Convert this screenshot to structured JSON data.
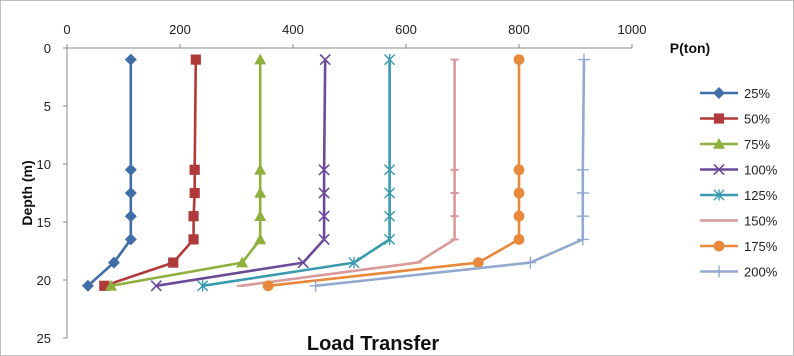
{
  "chart_data": {
    "type": "line",
    "title": "Load Transfer",
    "xlabel": "P(ton)",
    "ylabel": "Depth (m)",
    "xlim": [
      0,
      1000
    ],
    "ylim": [
      0,
      25
    ],
    "y_inverted": true,
    "x_axis_position": "top",
    "grid": false,
    "legend_position": "right",
    "x_ticks": [
      "0",
      "200",
      "400",
      "600",
      "800",
      "1000"
    ],
    "y_ticks": [
      "0",
      "5",
      "10",
      "15",
      "20",
      "25"
    ],
    "series": [
      {
        "name": "25%",
        "color": "#3F6EA8",
        "marker": "diamond",
        "points": [
          [
            113,
            1
          ],
          [
            113,
            10.5
          ],
          [
            113,
            12.5
          ],
          [
            113,
            14.5
          ],
          [
            113,
            16.5
          ],
          [
            83,
            18.5
          ],
          [
            37,
            20.5
          ]
        ]
      },
      {
        "name": "50%",
        "color": "#B03A3A",
        "marker": "square",
        "points": [
          [
            228,
            1
          ],
          [
            226,
            10.5
          ],
          [
            226,
            12.5
          ],
          [
            224,
            14.5
          ],
          [
            224,
            16.5
          ],
          [
            188,
            18.5
          ],
          [
            66,
            20.5
          ]
        ]
      },
      {
        "name": "75%",
        "color": "#8FB03F",
        "marker": "triangle",
        "points": [
          [
            342,
            1
          ],
          [
            342,
            10.5
          ],
          [
            342,
            12.5
          ],
          [
            342,
            14.5
          ],
          [
            342,
            16.5
          ],
          [
            310,
            18.5
          ],
          [
            78,
            20.5
          ]
        ]
      },
      {
        "name": "100%",
        "color": "#6B4A9A",
        "marker": "x",
        "points": [
          [
            457,
            1
          ],
          [
            455,
            10.5
          ],
          [
            455,
            12.5
          ],
          [
            455,
            14.5
          ],
          [
            455,
            16.5
          ],
          [
            418,
            18.5
          ],
          [
            158,
            20.5
          ]
        ]
      },
      {
        "name": "125%",
        "color": "#3A9AB0",
        "marker": "star",
        "points": [
          [
            571,
            1
          ],
          [
            571,
            10.5
          ],
          [
            571,
            12.5
          ],
          [
            571,
            14.5
          ],
          [
            571,
            16.5
          ],
          [
            508,
            18.5
          ],
          [
            240,
            20.5
          ]
        ]
      },
      {
        "name": "150%",
        "color": "#D99A9A",
        "marker": "dash",
        "points": [
          [
            686,
            1
          ],
          [
            686,
            10.5
          ],
          [
            686,
            12.5
          ],
          [
            686,
            14.5
          ],
          [
            686,
            16.5
          ],
          [
            620,
            18.5
          ],
          [
            308,
            20.5
          ]
        ]
      },
      {
        "name": "175%",
        "color": "#E8883A",
        "marker": "circle",
        "points": [
          [
            800,
            1
          ],
          [
            800,
            10.5
          ],
          [
            800,
            12.5
          ],
          [
            800,
            14.5
          ],
          [
            800,
            16.5
          ],
          [
            728,
            18.5
          ],
          [
            356,
            20.5
          ]
        ]
      },
      {
        "name": "200%",
        "color": "#93A9D0",
        "marker": "plus",
        "points": [
          [
            915,
            1
          ],
          [
            913,
            10.5
          ],
          [
            913,
            12.5
          ],
          [
            913,
            14.5
          ],
          [
            913,
            16.5
          ],
          [
            820,
            18.5
          ],
          [
            440,
            20.5
          ]
        ]
      }
    ]
  }
}
